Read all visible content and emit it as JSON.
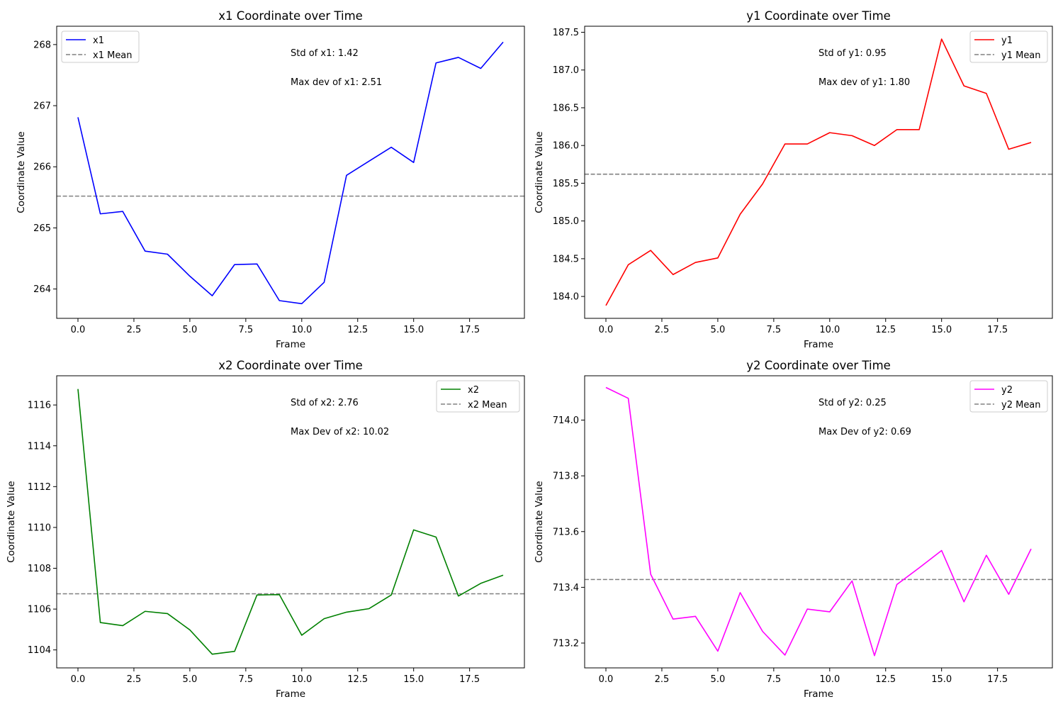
{
  "chart_data": [
    {
      "type": "line",
      "title": "x1 Coordinate over Time",
      "xlabel": "Frame",
      "ylabel": "Coordinate Value",
      "xlim": [
        -0.95,
        19.95
      ],
      "ylim": [
        263.52,
        268.3
      ],
      "xticks": [
        0.0,
        2.5,
        5.0,
        7.5,
        10.0,
        12.5,
        15.0,
        17.5
      ],
      "xtick_labels": [
        "0.0",
        "2.5",
        "5.0",
        "7.5",
        "10.0",
        "12.5",
        "15.0",
        "17.5"
      ],
      "yticks": [
        264,
        265,
        266,
        267,
        268
      ],
      "ytick_labels": [
        "264",
        "265",
        "266",
        "267",
        "268"
      ],
      "legend_position": "upper left",
      "series": [
        {
          "name": "x1",
          "color": "#0000ff",
          "x": [
            0,
            1,
            2,
            3,
            4,
            5,
            6,
            7,
            8,
            9,
            10,
            11,
            12,
            13,
            14,
            15,
            16,
            17,
            18,
            19
          ],
          "values": [
            266.81,
            265.23,
            265.27,
            264.62,
            264.57,
            264.21,
            263.89,
            264.4,
            264.41,
            263.81,
            263.76,
            264.11,
            265.86,
            266.09,
            266.32,
            266.07,
            267.7,
            267.79,
            267.61,
            268.04
          ]
        }
      ],
      "mean_line": {
        "name": "x1 Mean",
        "value": 265.52,
        "color": "#808080",
        "style": "dashed"
      },
      "annotations": [
        "Std of x1: 1.42",
        "Max dev of x1: 2.51"
      ]
    },
    {
      "type": "line",
      "title": "y1 Coordinate over Time",
      "xlabel": "Frame",
      "ylabel": "Coordinate Value",
      "xlim": [
        -0.95,
        19.95
      ],
      "ylim": [
        183.71,
        187.58
      ],
      "xticks": [
        0.0,
        2.5,
        5.0,
        7.5,
        10.0,
        12.5,
        15.0,
        17.5
      ],
      "xtick_labels": [
        "0.0",
        "2.5",
        "5.0",
        "7.5",
        "10.0",
        "12.5",
        "15.0",
        "17.5"
      ],
      "yticks": [
        184.0,
        184.5,
        185.0,
        185.5,
        186.0,
        186.5,
        187.0,
        187.5
      ],
      "ytick_labels": [
        "184.0",
        "184.5",
        "185.0",
        "185.5",
        "186.0",
        "186.5",
        "187.0",
        "187.5"
      ],
      "legend_position": "upper right",
      "series": [
        {
          "name": "y1",
          "color": "#ff0000",
          "x": [
            0,
            1,
            2,
            3,
            4,
            5,
            6,
            7,
            8,
            9,
            10,
            11,
            12,
            13,
            14,
            15,
            16,
            17,
            18,
            19
          ],
          "values": [
            183.88,
            184.42,
            184.61,
            184.29,
            184.45,
            184.51,
            185.09,
            185.49,
            186.02,
            186.02,
            186.17,
            186.13,
            186.0,
            186.21,
            186.21,
            187.41,
            186.79,
            186.69,
            185.95,
            186.04
          ]
        }
      ],
      "mean_line": {
        "name": "y1 Mean",
        "value": 185.62,
        "color": "#808080",
        "style": "dashed"
      },
      "annotations": [
        "Std of y1: 0.95",
        "Max dev of y1: 1.80"
      ]
    },
    {
      "type": "line",
      "title": "x2 Coordinate over Time",
      "xlabel": "Frame",
      "ylabel": "Coordinate Value",
      "xlim": [
        -0.95,
        19.95
      ],
      "ylim": [
        1103.12,
        1117.43
      ],
      "xticks": [
        0.0,
        2.5,
        5.0,
        7.5,
        10.0,
        12.5,
        15.0,
        17.5
      ],
      "xtick_labels": [
        "0.0",
        "2.5",
        "5.0",
        "7.5",
        "10.0",
        "12.5",
        "15.0",
        "17.5"
      ],
      "yticks": [
        1104,
        1106,
        1108,
        1110,
        1112,
        1114,
        1116
      ],
      "ytick_labels": [
        "1104",
        "1106",
        "1108",
        "1110",
        "1112",
        "1114",
        "1116"
      ],
      "legend_position": "upper right",
      "series": [
        {
          "name": "x2",
          "color": "#008000",
          "x": [
            0,
            1,
            2,
            3,
            4,
            5,
            6,
            7,
            8,
            9,
            10,
            11,
            12,
            13,
            14,
            15,
            16,
            17,
            18,
            19
          ],
          "values": [
            1116.78,
            1105.34,
            1105.19,
            1105.89,
            1105.78,
            1104.98,
            1103.79,
            1103.93,
            1106.69,
            1106.71,
            1104.72,
            1105.53,
            1105.85,
            1106.02,
            1106.69,
            1109.88,
            1109.53,
            1106.64,
            1107.26,
            1107.66
          ]
        }
      ],
      "mean_line": {
        "name": "x2 Mean",
        "value": 1106.75,
        "color": "#808080",
        "style": "dashed"
      },
      "annotations": [
        "Std of x2: 2.76",
        "Max Dev of x2: 10.02"
      ]
    },
    {
      "type": "line",
      "title": "y2 Coordinate over Time",
      "xlabel": "Frame",
      "ylabel": "Coordinate Value",
      "xlim": [
        -0.95,
        19.95
      ],
      "ylim": [
        713.111,
        714.159
      ],
      "xticks": [
        0.0,
        2.5,
        5.0,
        7.5,
        10.0,
        12.5,
        15.0,
        17.5
      ],
      "xtick_labels": [
        "0.0",
        "2.5",
        "5.0",
        "7.5",
        "10.0",
        "12.5",
        "15.0",
        "17.5"
      ],
      "yticks": [
        713.2,
        713.4,
        713.6,
        713.8,
        714.0
      ],
      "ytick_labels": [
        "713.2",
        "713.4",
        "713.6",
        "713.8",
        "714.0"
      ],
      "legend_position": "upper right",
      "series": [
        {
          "name": "y2",
          "color": "#ff00ff",
          "x": [
            0,
            1,
            2,
            3,
            4,
            5,
            6,
            7,
            8,
            9,
            10,
            11,
            12,
            13,
            14,
            15,
            16,
            17,
            18,
            19
          ],
          "values": [
            714.117,
            714.078,
            713.447,
            713.286,
            713.296,
            713.171,
            713.381,
            713.242,
            713.157,
            713.322,
            713.312,
            713.423,
            713.155,
            713.41,
            713.47,
            713.532,
            713.348,
            713.515,
            713.375,
            713.538
          ]
        }
      ],
      "mean_line": {
        "name": "y2 Mean",
        "value": 713.428,
        "color": "#808080",
        "style": "dashed"
      },
      "annotations": [
        "Std of y2: 0.25",
        "Max Dev of y2: 0.69"
      ]
    }
  ]
}
